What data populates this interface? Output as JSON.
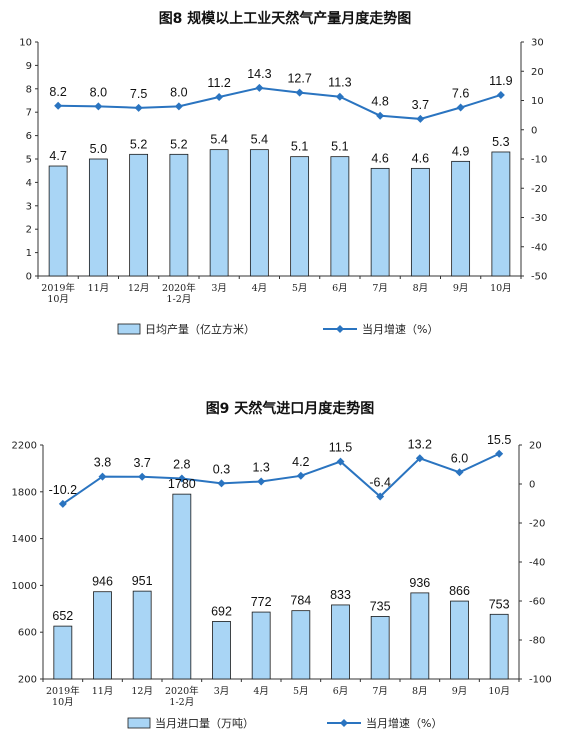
{
  "chart_data": [
    {
      "type": "bar",
      "title": "图8  规模以上工业天然气产量月度走势图",
      "categories": [
        "2019年\n10月",
        "11月",
        "12月",
        "2020年\n1-2月",
        "3月",
        "4月",
        "5月",
        "6月",
        "7月",
        "8月",
        "9月",
        "10月"
      ],
      "ylim": [
        0,
        10
      ],
      "y_ticks": [
        "0",
        "1",
        "2",
        "3",
        "4",
        "5",
        "6",
        "7",
        "8",
        "9",
        "10"
      ],
      "y2lim": [
        -50,
        30
      ],
      "y2_ticks": [
        "-50",
        "-40",
        "-30",
        "-20",
        "-10",
        "0",
        "10",
        "20",
        "30"
      ],
      "grid": false,
      "legend_position": "bottom",
      "series": [
        {
          "name": "日均产量（亿立方米）",
          "type": "bar",
          "axis": "left",
          "values": [
            4.7,
            5.0,
            5.2,
            5.2,
            5.4,
            5.4,
            5.1,
            5.1,
            4.6,
            4.6,
            4.9,
            5.3
          ],
          "labels": [
            "4.7",
            "5.0",
            "5.2",
            "5.2",
            "5.4",
            "5.4",
            "5.1",
            "5.1",
            "4.6",
            "4.6",
            "4.9",
            "5.3"
          ]
        },
        {
          "name": "当月增速（%）",
          "type": "line",
          "axis": "right",
          "values": [
            8.2,
            8.0,
            7.5,
            8.0,
            11.2,
            14.3,
            12.7,
            11.3,
            4.8,
            3.7,
            7.6,
            11.9
          ],
          "labels": [
            "8.2",
            "8.0",
            "7.5",
            "8.0",
            "11.2",
            "14.3",
            "12.7",
            "11.3",
            "4.8",
            "3.7",
            "7.6",
            "11.9"
          ]
        }
      ],
      "colors": {
        "bar_fill": "#a9d5f5",
        "line": "#2a74c0"
      }
    },
    {
      "type": "bar",
      "title": "图9  天然气进口月度走势图",
      "categories": [
        "2019年\n10月",
        "11月",
        "12月",
        "2020年\n1-2月",
        "3月",
        "4月",
        "5月",
        "6月",
        "7月",
        "8月",
        "9月",
        "10月"
      ],
      "ylim": [
        200,
        2200
      ],
      "y_ticks": [
        "200",
        "600",
        "1000",
        "1400",
        "1800",
        "2200"
      ],
      "y2lim": [
        -100,
        20
      ],
      "y2_ticks": [
        "-100",
        "-80",
        "-60",
        "-40",
        "-20",
        "0",
        "20"
      ],
      "grid": false,
      "legend_position": "bottom",
      "series": [
        {
          "name": "当月进口量（万吨）",
          "type": "bar",
          "axis": "left",
          "values": [
            652,
            946,
            951,
            1780,
            692,
            772,
            784,
            833,
            735,
            936,
            866,
            753
          ],
          "labels": [
            "652",
            "946",
            "951",
            "1780",
            "692",
            "772",
            "784",
            "833",
            "735",
            "936",
            "866",
            "753"
          ]
        },
        {
          "name": "当月增速（%）",
          "type": "line",
          "axis": "right",
          "values": [
            -10.2,
            3.8,
            3.7,
            2.8,
            0.3,
            1.3,
            4.2,
            11.5,
            -6.4,
            13.2,
            6.0,
            15.5
          ],
          "labels": [
            "-10.2",
            "3.8",
            "3.7",
            "2.8",
            "0.3",
            "1.3",
            "4.2",
            "11.5",
            "-6.4",
            "13.2",
            "6.0",
            "15.5"
          ]
        }
      ],
      "colors": {
        "bar_fill": "#a9d5f5",
        "line": "#2a74c0"
      }
    }
  ]
}
